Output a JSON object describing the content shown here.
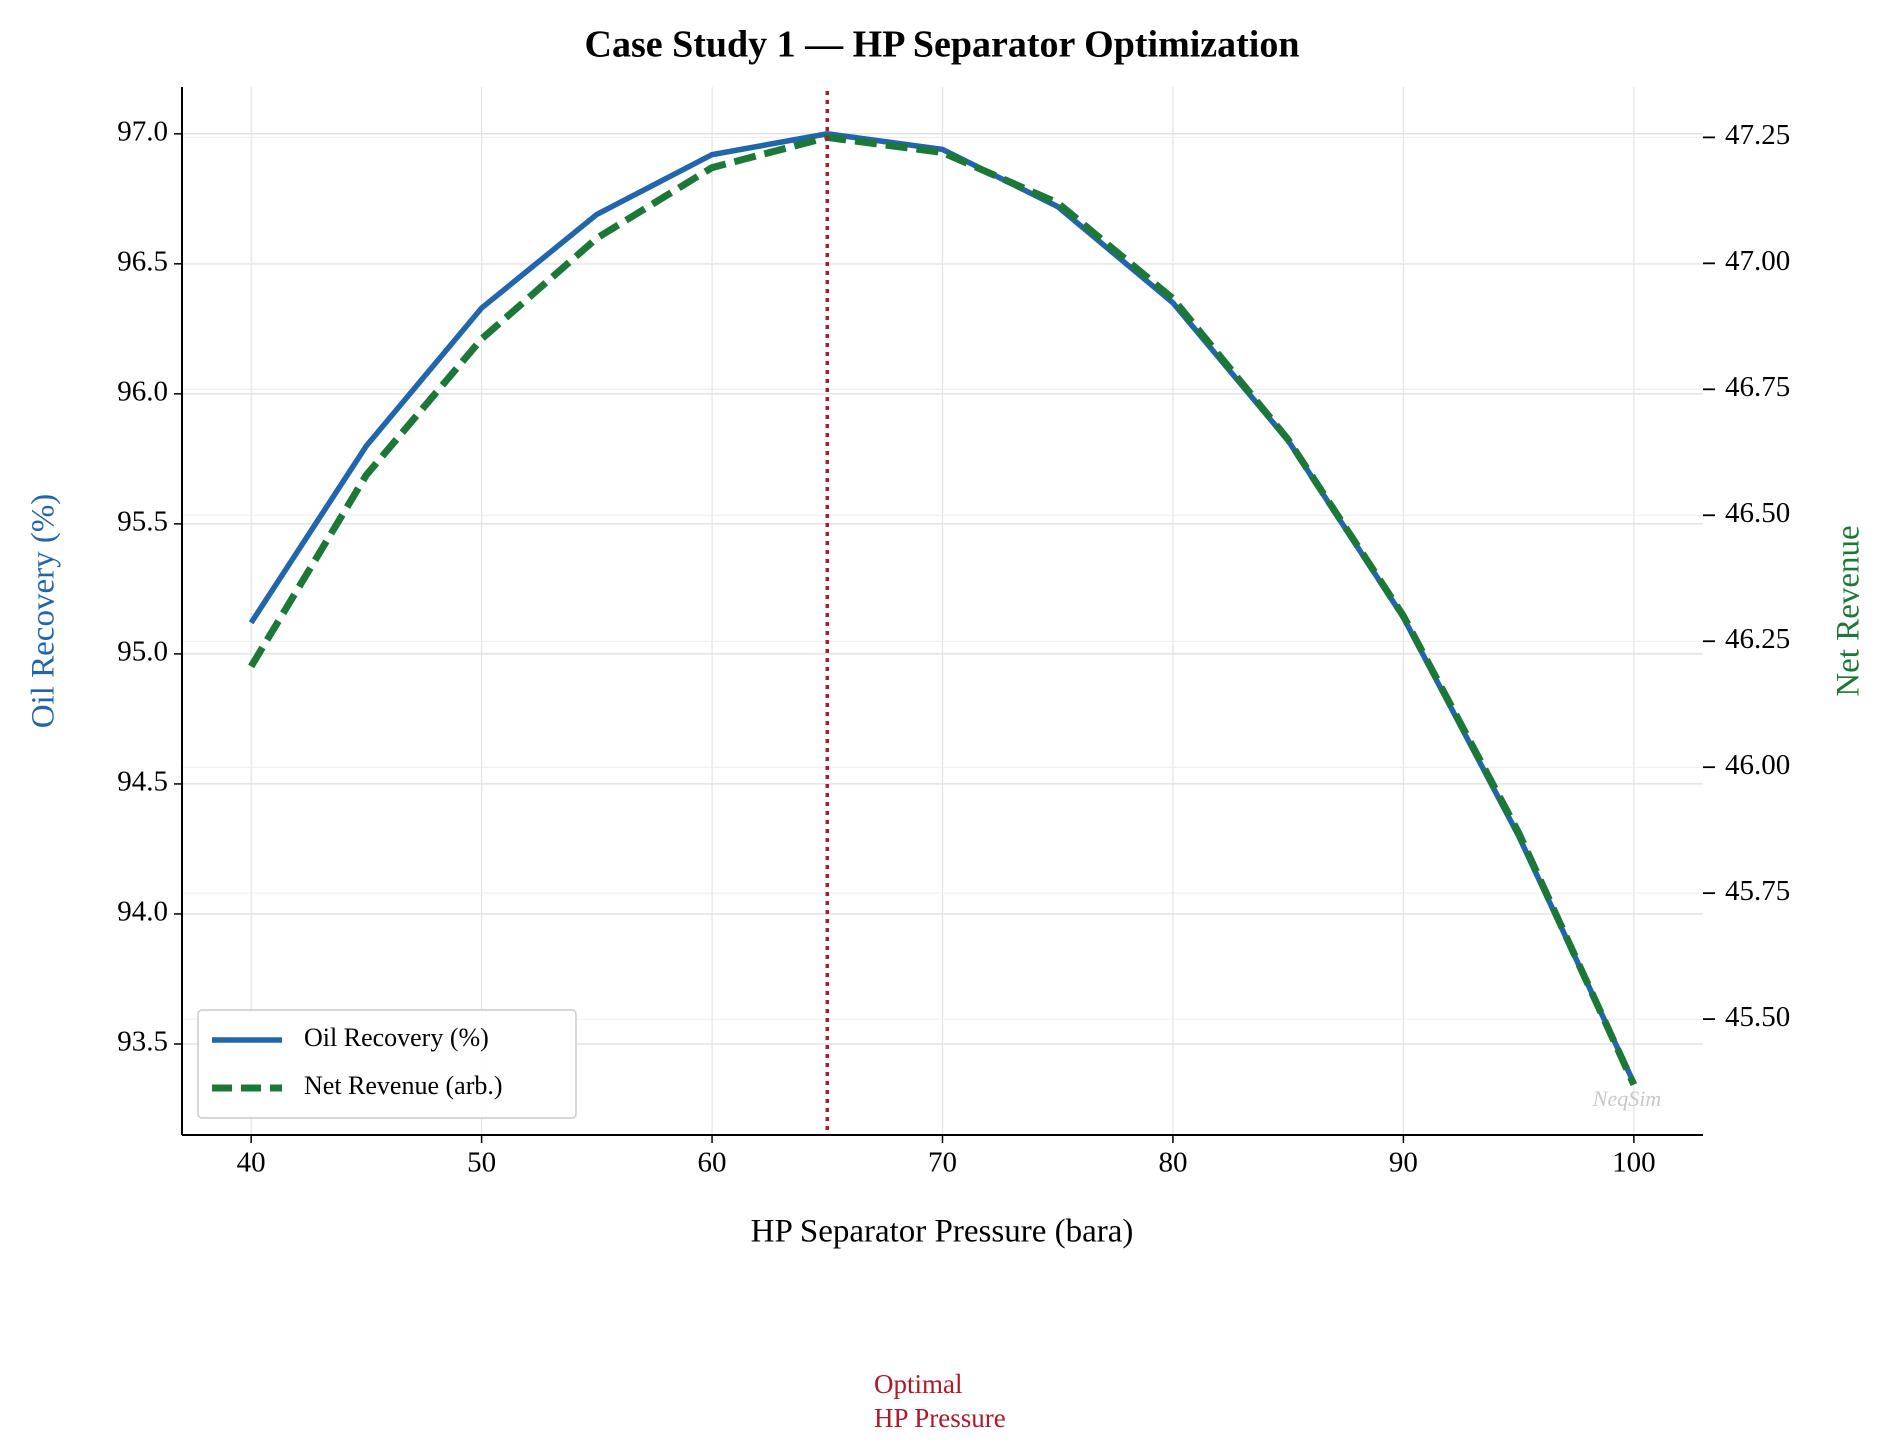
{
  "chart_data": {
    "type": "line",
    "title": "Case Study 1 — HP Separator Optimization",
    "x_label": "HP Separator Pressure (bara)",
    "y_label": "Oil Recovery (%)",
    "y2_label": "Net Revenue",
    "x": [
      40,
      45,
      50,
      55,
      60,
      65,
      70,
      75,
      80,
      85,
      90,
      95,
      100
    ],
    "series": [
      {
        "name": "Oil Recovery (%)",
        "color": "#2166ac",
        "linestyle": "solid",
        "axis": "y",
        "values": [
          95.12,
          95.8,
          96.33,
          96.69,
          96.92,
          97.0,
          96.94,
          96.72,
          96.35,
          95.82,
          95.14,
          94.3,
          93.35
        ]
      },
      {
        "name": "Net Revenue (arb.)",
        "color": "#1b7837",
        "linestyle": "dashed",
        "axis": "y2",
        "values": [
          46.2,
          46.58,
          46.85,
          47.05,
          47.19,
          47.25,
          47.22,
          47.12,
          46.93,
          46.65,
          46.3,
          45.87,
          45.37
        ]
      }
    ],
    "xlim": [
      37,
      103
    ],
    "xticks": [
      40,
      50,
      60,
      70,
      80,
      90,
      100
    ],
    "ylim": [
      93.15,
      97.18
    ],
    "yticks": [
      93.5,
      {
        "value": 94,
        "label": "94.0"
      },
      94.5,
      {
        "value": 95,
        "label": "95.0"
      },
      95.5,
      {
        "value": 96,
        "label": "96.0"
      },
      96.5,
      {
        "value": 97,
        "label": "97.0"
      }
    ],
    "y2lim": [
      45.27,
      47.35
    ],
    "y2ticks": [
      {
        "value": 45.5,
        "label": "45.50"
      },
      {
        "value": 45.75,
        "label": "45.75"
      },
      {
        "value": 46,
        "label": "46.00"
      },
      {
        "value": 46.25,
        "label": "46.25"
      },
      {
        "value": 46.5,
        "label": "46.50"
      },
      {
        "value": 46.75,
        "label": "46.75"
      },
      {
        "value": 47,
        "label": "47.00"
      },
      {
        "value": 47.25,
        "label": "47.25"
      }
    ],
    "grid": true,
    "legend": "lower left",
    "vline": {
      "x": 65,
      "color": "#b2182b",
      "annotation": [
        "Optimal",
        "HP Pressure"
      ]
    },
    "watermark": "NeqSim"
  }
}
